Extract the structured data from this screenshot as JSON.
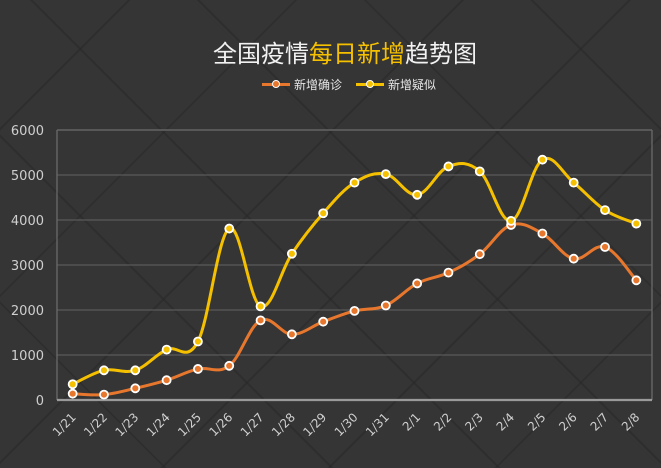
{
  "title": {
    "part1": "全国疫情",
    "highlight": "每日新增",
    "part2": "趋势图"
  },
  "legend": [
    {
      "label": "新增确诊",
      "color": "#e8772e"
    },
    {
      "label": "新增疑似",
      "color": "#f5c000"
    }
  ],
  "colors": {
    "background": "#353535",
    "grid": "#5a5a5a",
    "axis": "#9a9a9a",
    "confirmed": "#e8772e",
    "suspected": "#f5c000",
    "title_highlight": "#f5c000"
  },
  "chart_data": {
    "type": "line",
    "title": "全国疫情每日新增趋势图",
    "xlabel": "",
    "ylabel": "",
    "categories": [
      "1/21",
      "1/22",
      "1/23",
      "1/24",
      "1/25",
      "1/26",
      "1/27",
      "1/28",
      "1/29",
      "1/30",
      "1/31",
      "2/1",
      "2/2",
      "2/3",
      "2/4",
      "2/5",
      "2/6",
      "2/7",
      "2/8"
    ],
    "series": [
      {
        "name": "新增确诊",
        "color": "#e8772e",
        "values": [
          140,
          120,
          260,
          440,
          690,
          760,
          1770,
          1460,
          1740,
          1980,
          2100,
          2590,
          2830,
          3240,
          3890,
          3700,
          3140,
          3400,
          2660
        ]
      },
      {
        "name": "新增疑似",
        "color": "#f5c000",
        "values": [
          350,
          660,
          660,
          1120,
          1300,
          3810,
          2080,
          3250,
          4150,
          4830,
          5020,
          4560,
          5190,
          5080,
          3980,
          5340,
          4830,
          4220,
          3920
        ]
      }
    ],
    "yticks": [
      0,
      1000,
      2000,
      3000,
      4000,
      5000,
      6000
    ],
    "ylim": [
      0,
      6000
    ],
    "grid": true,
    "legend_position": "top-center",
    "smooth": true
  }
}
